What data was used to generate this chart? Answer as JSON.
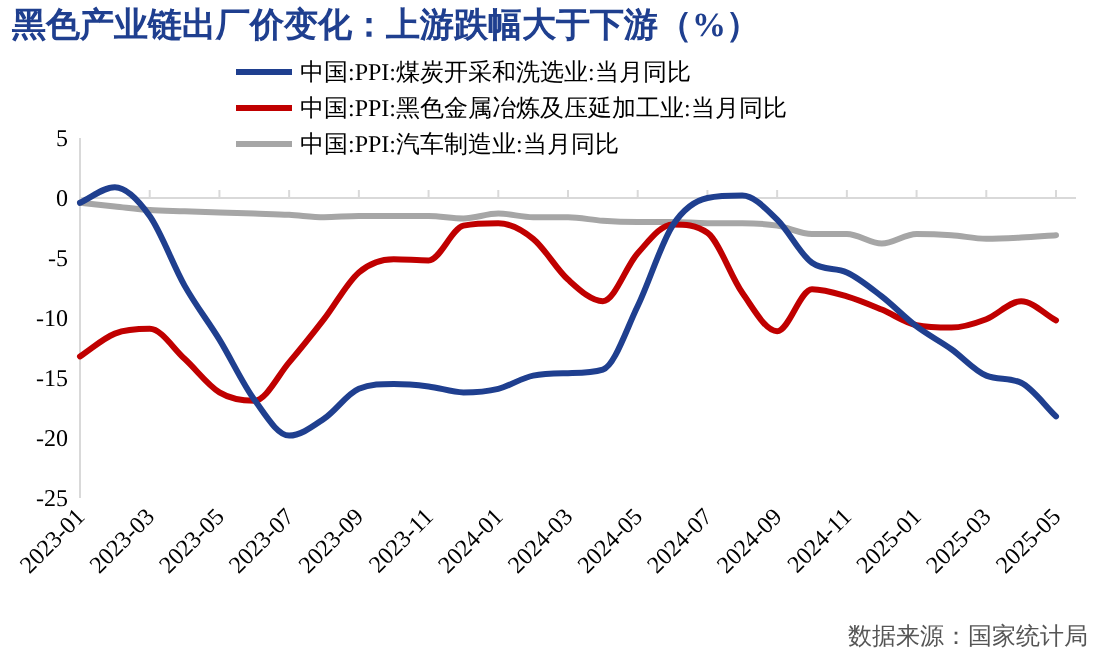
{
  "chart_data": {
    "type": "line",
    "title": "黑色产业链出厂价变化：上游跌幅大于下游（%）",
    "categories": [
      "2023-01",
      null,
      "2023-03",
      null,
      "2023-05",
      null,
      "2023-07",
      null,
      "2023-09",
      null,
      "2023-11",
      null,
      "2024-01",
      null,
      "2024-03",
      null,
      "2024-05",
      null,
      "2024-07",
      null,
      "2024-09",
      null,
      "2024-11",
      null,
      "2025-01",
      null,
      "2025-03",
      null,
      "2025-05"
    ],
    "series": [
      {
        "name": "中国:PPI:煤炭开采和洗选业:当月同比",
        "color": "#1f3f8f",
        "values": [
          -0.4,
          0.9,
          -1.5,
          -7.3,
          -11.8,
          -16.8,
          -19.8,
          -18.4,
          -15.9,
          -15.5,
          -15.7,
          -16.2,
          -15.9,
          -14.8,
          -14.6,
          -14.3,
          -9.0,
          -2.3,
          0.0,
          0.2,
          -1.8,
          -5.4,
          -6.2,
          -8.2,
          -10.7,
          -12.6,
          -14.8,
          -15.4,
          -18.2
        ]
      },
      {
        "name": "中国:PPI:黑色金属冶炼及压延加工业:当月同比",
        "color": "#c00000",
        "values": [
          -13.2,
          -11.3,
          -10.9,
          -13.4,
          -16.2,
          -16.9,
          -13.7,
          -10.1,
          -6.2,
          -5.1,
          -5.2,
          -2.3,
          -2.1,
          -3.4,
          -6.8,
          -8.6,
          -4.6,
          -2.2,
          -2.9,
          -7.9,
          -11.1,
          -7.6,
          -8.2,
          -9.3,
          -10.6,
          -10.8,
          -10.1,
          -8.6,
          -10.2
        ]
      },
      {
        "name": "中国:PPI:汽车制造业:当月同比",
        "color": "#a6a6a6",
        "values": [
          -0.4,
          -0.7,
          -1.0,
          -1.1,
          -1.2,
          -1.3,
          -1.4,
          -1.6,
          -1.5,
          -1.5,
          -1.5,
          -1.7,
          -1.3,
          -1.6,
          -1.6,
          -1.9,
          -2.0,
          -2.0,
          -2.1,
          -2.1,
          -2.3,
          -3.0,
          -3.0,
          -3.8,
          -3.0,
          -3.1,
          -3.4,
          -3.3,
          -3.1
        ]
      }
    ],
    "ylim": [
      -25,
      5
    ],
    "yticks": [
      5,
      0,
      -5,
      -10,
      -15,
      -20,
      -25
    ],
    "legend": "top",
    "marker": "none",
    "line_style": "solid",
    "annotations": [
      "数据来源：国家统计局"
    ]
  }
}
